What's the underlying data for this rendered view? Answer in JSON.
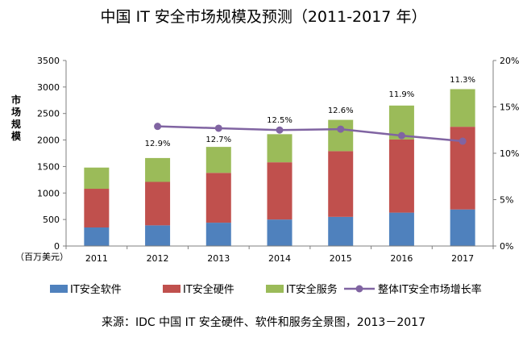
{
  "chart_data": {
    "type": "bar",
    "title": "中国 IT 安全市场规模及预测（2011-2017 年）",
    "ylabel": "市场规模",
    "y_unit": "（百万美元）",
    "categories": [
      "2011",
      "2012",
      "2013",
      "2014",
      "2015",
      "2016",
      "2017"
    ],
    "ylim": [
      0,
      3500
    ],
    "y_ticks": [
      "0",
      "500",
      "1000",
      "1500",
      "2000",
      "2500",
      "3000",
      "3500"
    ],
    "y2lim": [
      0,
      20
    ],
    "y2_ticks": [
      "0%",
      "5%",
      "10%",
      "15%",
      "20%"
    ],
    "series": [
      {
        "name": "IT安全软件",
        "kind": "bar",
        "color": "#4F81BD",
        "values": [
          350,
          390,
          440,
          500,
          550,
          630,
          690
        ]
      },
      {
        "name": "IT安全硬件",
        "kind": "bar",
        "color": "#C0504D",
        "values": [
          730,
          820,
          940,
          1080,
          1240,
          1380,
          1560
        ]
      },
      {
        "name": "IT安全服务",
        "kind": "bar",
        "color": "#9BBB59",
        "values": [
          400,
          450,
          490,
          530,
          590,
          640,
          710
        ]
      },
      {
        "name": "整体IT安全市场增长率",
        "kind": "line",
        "axis": "right",
        "color": "#8064A2",
        "values": [
          null,
          12.9,
          12.7,
          12.5,
          12.6,
          11.9,
          11.3
        ],
        "labels": [
          "",
          "12.9%",
          "12.7%",
          "12.5%",
          "12.6%",
          "11.9%",
          "11.3%"
        ]
      }
    ],
    "legend_position": "bottom",
    "grid": false
  },
  "source": "来源：IDC 中国 IT 安全硬件、软件和服务全景图，2013－2017"
}
